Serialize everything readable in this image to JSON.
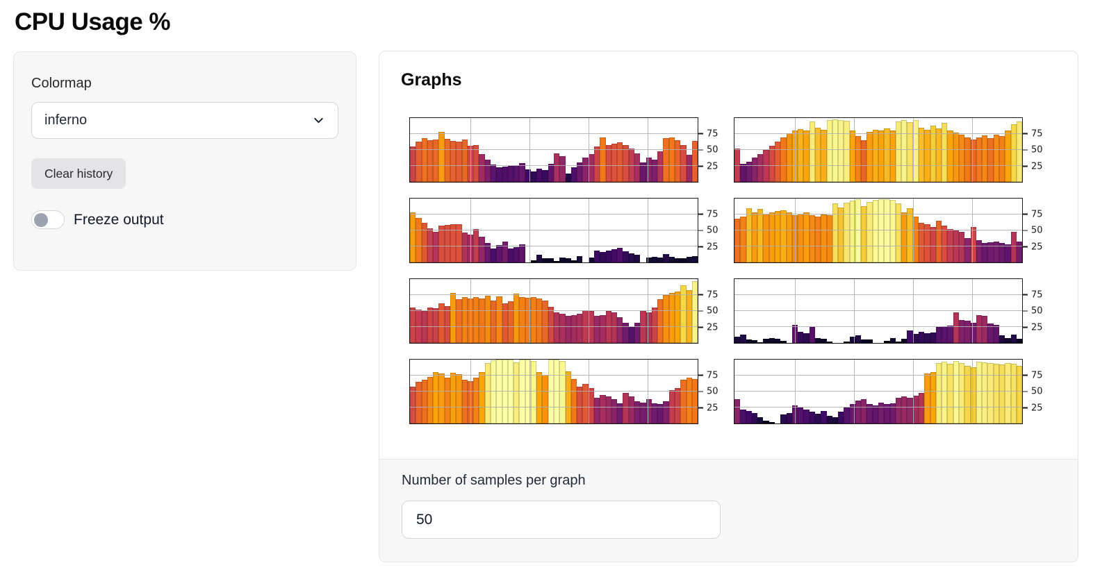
{
  "title": "CPU Usage %",
  "controls": {
    "colormap": {
      "label": "Colormap",
      "value": "inferno"
    },
    "clear_button_label": "Clear history",
    "freeze_toggle": {
      "label": "Freeze output",
      "state": "off"
    }
  },
  "graphs": {
    "heading": "Graphs",
    "samples": {
      "label": "Number of samples per graph",
      "value": "50"
    }
  },
  "icons": {
    "dropdown": "chevron-down-icon"
  },
  "colors": {
    "panel_bg": "#f7f7f8",
    "panel_border": "#e4e4e7",
    "button_bg": "#e4e4e7",
    "toggle_knob": "#9ca3af",
    "grid_line": "#b0b0b0",
    "inferno_low": "#000004",
    "inferno_mid": "#bc3754",
    "inferno_high": "#fcffa4"
  },
  "chart_data": [
    {
      "type": "bar",
      "ylim": [
        0,
        100
      ],
      "yticks": [
        25,
        50,
        75
      ],
      "colormap": "inferno",
      "grid": true,
      "values": [
        55,
        63,
        68,
        65,
        66,
        78,
        67,
        64,
        63,
        66,
        57,
        58,
        43,
        35,
        27,
        23,
        24,
        25,
        26,
        29,
        20,
        16,
        21,
        18,
        28,
        45,
        40,
        13,
        23,
        30,
        38,
        43,
        55,
        70,
        58,
        60,
        62,
        58,
        52,
        45,
        30,
        38,
        35,
        48,
        68,
        70,
        65,
        58,
        42,
        64
      ]
    },
    {
      "type": "bar",
      "ylim": [
        0,
        100
      ],
      "yticks": [
        25,
        50,
        75
      ],
      "colormap": "inferno",
      "grid": true,
      "values": [
        52,
        28,
        32,
        38,
        44,
        50,
        57,
        63,
        70,
        76,
        80,
        83,
        80,
        95,
        85,
        82,
        97,
        98,
        97,
        96,
        80,
        72,
        65,
        78,
        82,
        80,
        84,
        80,
        95,
        97,
        93,
        97,
        85,
        82,
        88,
        84,
        92,
        80,
        77,
        74,
        70,
        66,
        70,
        73,
        68,
        74,
        72,
        80,
        90,
        95
      ]
    },
    {
      "type": "bar",
      "ylim": [
        0,
        100
      ],
      "yticks": [
        25,
        50,
        75
      ],
      "colormap": "inferno",
      "grid": true,
      "values": [
        78,
        70,
        62,
        53,
        48,
        58,
        59,
        60,
        60,
        47,
        44,
        52,
        40,
        30,
        22,
        27,
        33,
        22,
        24,
        28,
        0,
        3,
        12,
        7,
        6,
        2,
        8,
        7,
        3,
        10,
        0,
        8,
        18,
        16,
        18,
        21,
        23,
        17,
        14,
        12,
        0,
        8,
        9,
        8,
        13,
        9,
        7,
        6,
        9,
        10
      ]
    },
    {
      "type": "bar",
      "ylim": [
        0,
        100
      ],
      "yticks": [
        25,
        50,
        75
      ],
      "colormap": "inferno",
      "grid": true,
      "values": [
        68,
        72,
        85,
        78,
        84,
        76,
        78,
        80,
        82,
        78,
        74,
        76,
        78,
        74,
        72,
        75,
        74,
        92,
        86,
        94,
        97,
        99,
        88,
        95,
        98,
        99,
        99,
        98,
        92,
        78,
        85,
        72,
        62,
        60,
        55,
        65,
        58,
        52,
        50,
        48,
        38,
        55,
        35,
        30,
        32,
        33,
        30,
        28,
        48,
        33
      ]
    },
    {
      "type": "bar",
      "ylim": [
        0,
        100
      ],
      "yticks": [
        25,
        50,
        75
      ],
      "colormap": "inferno",
      "grid": true,
      "values": [
        55,
        52,
        50,
        55,
        54,
        62,
        58,
        78,
        68,
        72,
        70,
        72,
        70,
        74,
        66,
        73,
        62,
        65,
        77,
        72,
        71,
        72,
        70,
        66,
        57,
        48,
        46,
        42,
        44,
        46,
        51,
        50,
        42,
        44,
        50,
        48,
        40,
        32,
        25,
        32,
        50,
        48,
        55,
        68,
        75,
        78,
        80,
        90,
        83,
        97
      ]
    },
    {
      "type": "bar",
      "ylim": [
        0,
        100
      ],
      "yticks": [
        25,
        50,
        75
      ],
      "colormap": "inferno",
      "grid": true,
      "values": [
        10,
        13,
        5,
        4,
        1,
        6,
        8,
        7,
        3,
        0,
        28,
        17,
        15,
        25,
        8,
        6,
        2,
        0,
        0,
        2,
        10,
        12,
        5,
        5,
        0,
        0,
        3,
        8,
        2,
        6,
        20,
        14,
        17,
        15,
        16,
        25,
        26,
        27,
        48,
        36,
        35,
        32,
        44,
        42,
        30,
        28,
        12,
        8,
        13,
        6
      ]
    },
    {
      "type": "bar",
      "ylim": [
        0,
        100
      ],
      "yticks": [
        25,
        50,
        75
      ],
      "colormap": "inferno",
      "grid": true,
      "values": [
        58,
        65,
        68,
        73,
        80,
        78,
        72,
        79,
        77,
        68,
        66,
        72,
        80,
        95,
        99,
        100,
        100,
        100,
        96,
        100,
        100,
        98,
        80,
        76,
        100,
        100,
        98,
        82,
        70,
        58,
        62,
        55,
        40,
        45,
        42,
        38,
        32,
        48,
        42,
        35,
        33,
        38,
        32,
        30,
        35,
        52,
        55,
        68,
        72,
        70
      ]
    },
    {
      "type": "bar",
      "ylim": [
        0,
        100
      ],
      "yticks": [
        25,
        50,
        75
      ],
      "colormap": "inferno",
      "grid": true,
      "values": [
        38,
        22,
        20,
        16,
        10,
        4,
        2,
        0,
        14,
        16,
        28,
        25,
        22,
        18,
        15,
        20,
        12,
        10,
        18,
        25,
        30,
        36,
        38,
        30,
        28,
        33,
        30,
        32,
        40,
        42,
        40,
        44,
        48,
        78,
        80,
        95,
        97,
        93,
        98,
        95,
        90,
        88,
        97,
        96,
        95,
        93,
        92,
        95,
        93,
        90
      ]
    }
  ]
}
